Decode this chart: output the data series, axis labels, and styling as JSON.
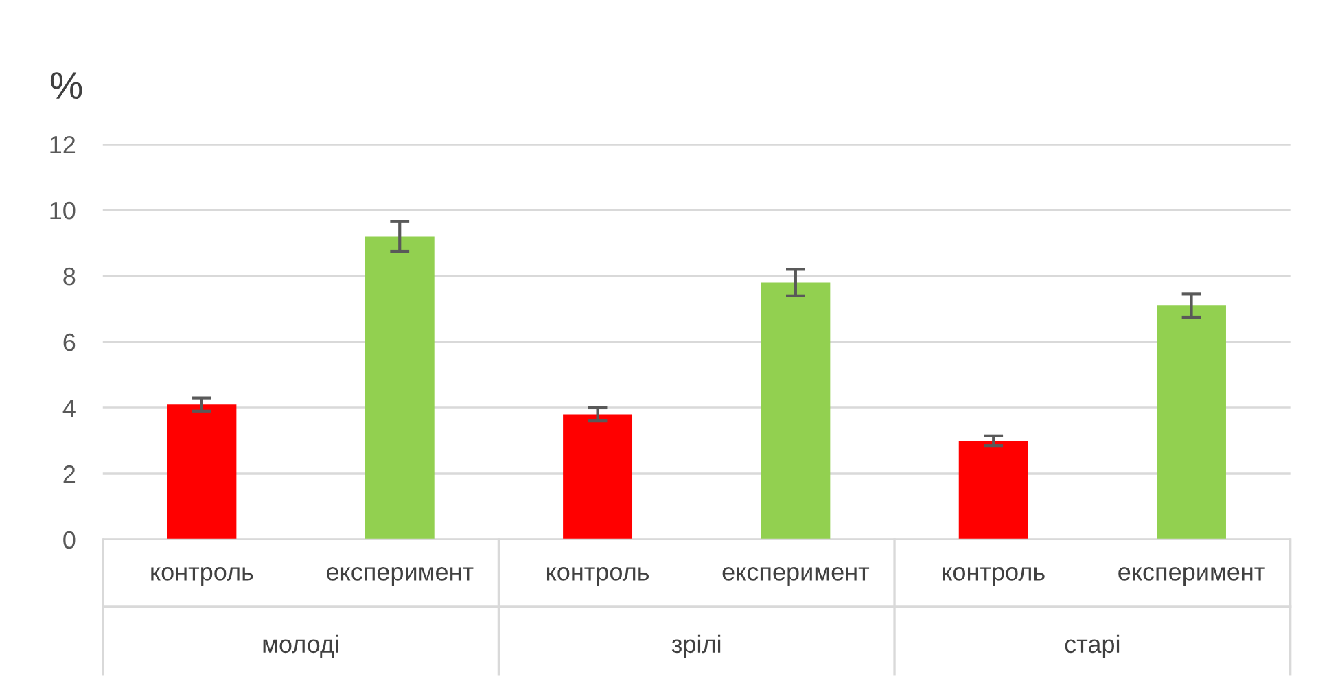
{
  "chart_data": {
    "type": "bar",
    "ylabel": "%",
    "categories": [
      "контроль",
      "експеримент",
      "контроль",
      "експеримент",
      "контроль",
      "експеримент"
    ],
    "values": [
      4.1,
      9.2,
      3.8,
      7.8,
      3.0,
      7.1
    ],
    "errors": [
      0.2,
      0.45,
      0.2,
      0.4,
      0.15,
      0.35
    ],
    "colors": [
      "#ff0000",
      "#92d050",
      "#ff0000",
      "#92d050",
      "#ff0000",
      "#92d050"
    ],
    "annotations": [
      "молоді",
      "зрілі",
      "старі"
    ],
    "ylim": [
      0,
      12
    ],
    "yticks": [
      0,
      2,
      4,
      6,
      8,
      10,
      12
    ],
    "grid": "y"
  }
}
